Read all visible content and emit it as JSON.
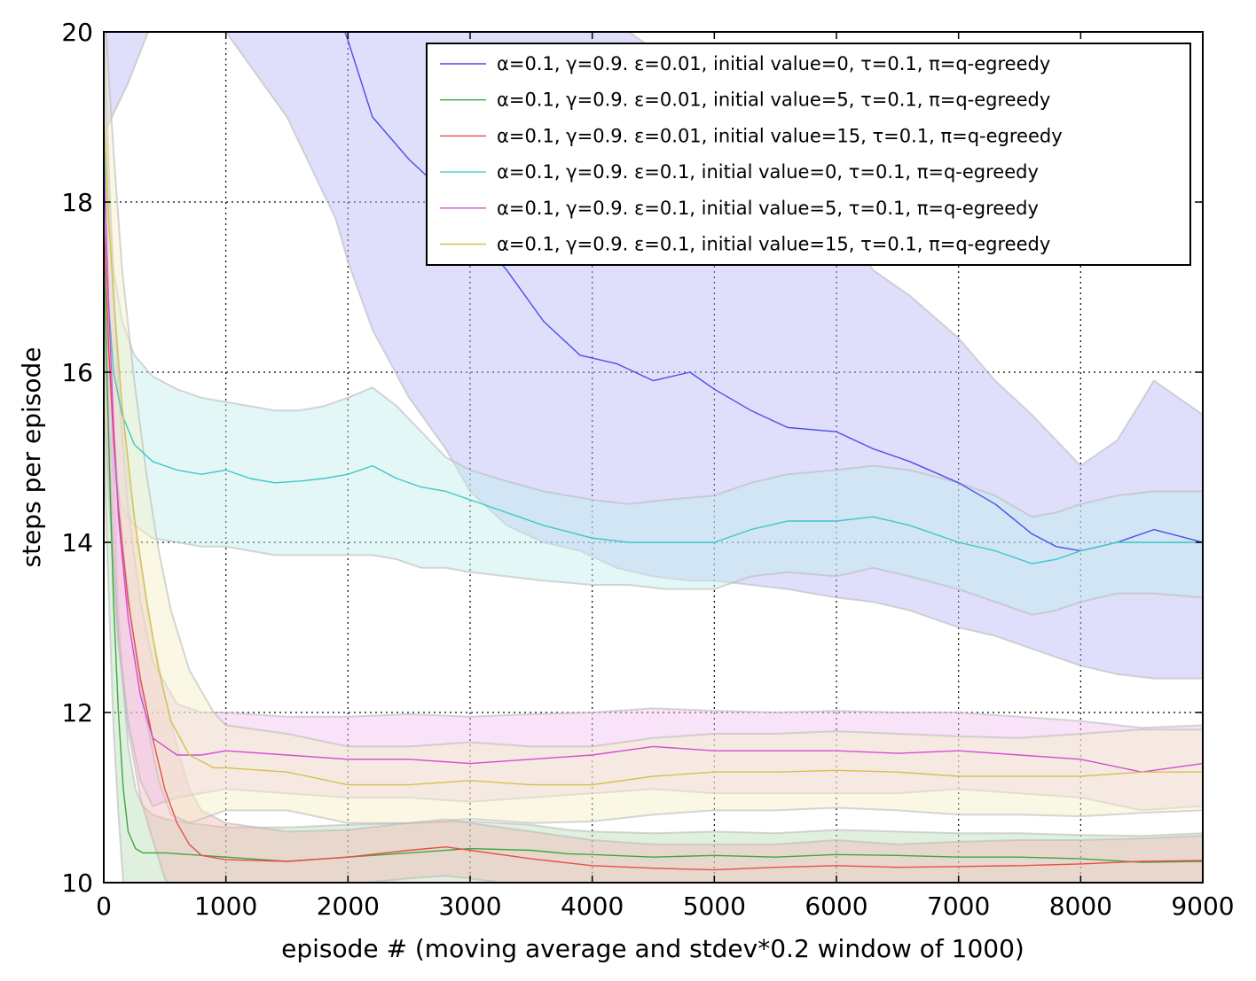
{
  "chart_data": {
    "type": "line",
    "title": "",
    "xlabel": "episode # (moving average and stdev*0.2 window of 1000)",
    "ylabel": "steps per episode",
    "xlim": [
      0,
      9000
    ],
    "ylim": [
      10,
      20
    ],
    "xticks": [
      0,
      1000,
      2000,
      3000,
      4000,
      5000,
      6000,
      7000,
      8000,
      9000
    ],
    "yticks": [
      10,
      12,
      14,
      16,
      18,
      20
    ],
    "xtick_labels": [
      "0",
      "1000",
      "2000",
      "3000",
      "4000",
      "5000",
      "6000",
      "7000",
      "8000",
      "9000"
    ],
    "ytick_labels": [
      "10",
      "12",
      "14",
      "16",
      "18",
      "20"
    ],
    "grid": true,
    "legend_position": "top-right",
    "series": [
      {
        "name": "α=0.1, γ=0.9. ε=0.01, initial value=0, τ=0.1, π=q-egreedy",
        "color": "#4d4de8",
        "fill": "#b7b7f7",
        "x": [
          0,
          200,
          500,
          1000,
          1500,
          1900,
          2000,
          2200,
          2500,
          2800,
          3000,
          3300,
          3600,
          3900,
          4200,
          4500,
          4800,
          5000,
          5300,
          5600,
          6000,
          6300,
          6600,
          7000,
          7300,
          7600,
          7800,
          8000,
          8300,
          8600,
          9000
        ],
        "mean": [
          20.9,
          21.4,
          21.8,
          21.5,
          21.0,
          20.3,
          19.9,
          19.0,
          18.5,
          18.1,
          17.7,
          17.2,
          16.6,
          16.2,
          16.1,
          15.9,
          16.0,
          15.8,
          15.55,
          15.35,
          15.3,
          15.1,
          14.95,
          14.7,
          14.45,
          14.1,
          13.95,
          13.9,
          14.0,
          14.15,
          14.0
        ],
        "upper": [
          23.0,
          23.0,
          23.0,
          23.0,
          22.5,
          22.0,
          21.7,
          21.4,
          21.2,
          21.0,
          20.8,
          20.6,
          20.4,
          20.3,
          20.1,
          19.8,
          19.5,
          19.3,
          18.8,
          18.3,
          17.8,
          17.2,
          16.9,
          16.4,
          15.9,
          15.5,
          15.2,
          14.9,
          15.2,
          15.9,
          15.5
        ],
        "lower": [
          18.8,
          19.4,
          20.5,
          20.0,
          19.0,
          17.8,
          17.3,
          16.5,
          15.7,
          15.1,
          14.6,
          14.2,
          14.0,
          13.9,
          13.7,
          13.6,
          13.55,
          13.55,
          13.5,
          13.45,
          13.35,
          13.3,
          13.2,
          13.0,
          12.9,
          12.75,
          12.65,
          12.55,
          12.45,
          12.4,
          12.4
        ]
      },
      {
        "name": "α=0.1, γ=0.9. ε=0.01, initial value=5, τ=0.1, π=q-egreedy",
        "color": "#3ea83e",
        "fill": "#b9ddb9",
        "x": [
          0,
          40,
          80,
          120,
          160,
          200,
          260,
          320,
          400,
          500,
          700,
          1000,
          1500,
          2000,
          2500,
          3000,
          3500,
          3800,
          4000,
          4500,
          5000,
          5500,
          6000,
          6500,
          7000,
          7500,
          8000,
          8500,
          9000
        ],
        "mean": [
          17.5,
          15.2,
          13.3,
          12.0,
          11.1,
          10.6,
          10.4,
          10.35,
          10.35,
          10.35,
          10.33,
          10.3,
          10.25,
          10.3,
          10.35,
          10.4,
          10.38,
          10.34,
          10.33,
          10.3,
          10.32,
          10.3,
          10.33,
          10.32,
          10.3,
          10.3,
          10.28,
          10.24,
          10.25
        ],
        "upper": [
          19.8,
          17.0,
          14.8,
          13.2,
          12.3,
          11.6,
          11.1,
          10.9,
          10.8,
          10.75,
          10.7,
          10.65,
          10.65,
          10.68,
          10.7,
          10.72,
          10.68,
          10.62,
          10.6,
          10.58,
          10.6,
          10.58,
          10.62,
          10.6,
          10.58,
          10.58,
          10.56,
          10.55,
          10.58
        ],
        "lower": [
          15.2,
          13.4,
          11.8,
          10.8,
          10.0,
          9.6,
          9.6,
          9.7,
          9.8,
          9.9,
          9.9,
          9.9,
          9.9,
          9.95,
          9.98,
          10.0,
          10.0,
          10.0,
          10.0,
          10.0,
          10.0,
          10.0,
          10.0,
          10.0,
          10.0,
          10.0,
          10.0,
          9.98,
          9.98
        ]
      },
      {
        "name": "α=0.1, γ=0.9. ε=0.01, initial value=15, τ=0.1, π=q-egreedy",
        "color": "#e84d4d",
        "fill": "#f4b9b9",
        "x": [
          0,
          40,
          80,
          120,
          200,
          300,
          400,
          500,
          600,
          700,
          800,
          1000,
          1500,
          2000,
          2500,
          2800,
          3000,
          3500,
          4000,
          4500,
          5000,
          5500,
          6000,
          6500,
          7000,
          7500,
          8000,
          8500,
          9000
        ],
        "mean": [
          17.8,
          16.3,
          15.2,
          14.4,
          13.3,
          12.4,
          11.7,
          11.1,
          10.7,
          10.45,
          10.32,
          10.27,
          10.25,
          10.3,
          10.38,
          10.42,
          10.38,
          10.28,
          10.2,
          10.17,
          10.15,
          10.18,
          10.2,
          10.18,
          10.19,
          10.2,
          10.22,
          10.25,
          10.26
        ],
        "upper": [
          20.0,
          18.0,
          16.8,
          16.0,
          14.8,
          13.8,
          12.9,
          12.2,
          11.6,
          11.1,
          10.85,
          10.7,
          10.6,
          10.62,
          10.7,
          10.75,
          10.7,
          10.6,
          10.5,
          10.45,
          10.45,
          10.45,
          10.5,
          10.45,
          10.48,
          10.5,
          10.5,
          10.52,
          10.55
        ],
        "lower": [
          15.6,
          14.6,
          13.6,
          12.8,
          11.8,
          11.0,
          10.5,
          10.05,
          9.8,
          9.8,
          9.8,
          9.85,
          9.9,
          9.98,
          10.05,
          10.08,
          10.05,
          9.95,
          9.9,
          9.88,
          9.85,
          9.9,
          9.9,
          9.9,
          9.9,
          9.9,
          9.92,
          9.95,
          9.97
        ]
      },
      {
        "name": "α=0.1, γ=0.9. ε=0.1, initial value=0, τ=0.1, π=q-egreedy",
        "color": "#3ec7c7",
        "fill": "#c2eeee",
        "x": [
          0,
          20,
          40,
          80,
          150,
          250,
          400,
          600,
          800,
          1000,
          1200,
          1400,
          1600,
          1800,
          2000,
          2200,
          2400,
          2600,
          2800,
          3000,
          3300,
          3600,
          4000,
          4300,
          4600,
          5000,
          5300,
          5600,
          6000,
          6300,
          6600,
          7000,
          7300,
          7600,
          7800,
          8000,
          8300,
          8600,
          9000
        ],
        "mean": [
          19.0,
          17.5,
          16.8,
          16.0,
          15.5,
          15.15,
          14.95,
          14.85,
          14.8,
          14.85,
          14.75,
          14.7,
          14.72,
          14.75,
          14.8,
          14.9,
          14.75,
          14.65,
          14.6,
          14.5,
          14.35,
          14.2,
          14.05,
          14.0,
          14.0,
          14.0,
          14.15,
          14.25,
          14.25,
          14.3,
          14.2,
          14.0,
          13.9,
          13.75,
          13.8,
          13.9,
          14.0,
          14.0,
          14.0
        ],
        "upper": [
          20.5,
          19.0,
          18.2,
          17.2,
          16.6,
          16.2,
          15.95,
          15.8,
          15.7,
          15.65,
          15.6,
          15.55,
          15.55,
          15.6,
          15.7,
          15.82,
          15.6,
          15.3,
          15.0,
          14.85,
          14.72,
          14.6,
          14.5,
          14.45,
          14.5,
          14.55,
          14.7,
          14.8,
          14.85,
          14.9,
          14.85,
          14.7,
          14.55,
          14.3,
          14.35,
          14.45,
          14.55,
          14.6,
          14.6
        ],
        "lower": [
          17.5,
          16.0,
          15.4,
          14.8,
          14.4,
          14.2,
          14.05,
          14.0,
          13.95,
          13.95,
          13.9,
          13.85,
          13.85,
          13.85,
          13.85,
          13.85,
          13.8,
          13.7,
          13.7,
          13.65,
          13.6,
          13.55,
          13.5,
          13.5,
          13.45,
          13.45,
          13.6,
          13.65,
          13.6,
          13.7,
          13.6,
          13.45,
          13.3,
          13.15,
          13.2,
          13.3,
          13.4,
          13.4,
          13.35
        ]
      },
      {
        "name": "α=0.1, γ=0.9. ε=0.1, initial value=5, τ=0.1, π=q-egreedy",
        "color": "#d44dd4",
        "fill": "#efc2ef",
        "x": [
          0,
          40,
          80,
          120,
          200,
          300,
          400,
          600,
          800,
          1000,
          1500,
          2000,
          2500,
          3000,
          3500,
          4000,
          4500,
          5000,
          5500,
          6000,
          6500,
          7000,
          7500,
          8000,
          8500,
          9000
        ],
        "mean": [
          18.5,
          16.8,
          15.4,
          14.3,
          13.1,
          12.2,
          11.7,
          11.5,
          11.5,
          11.55,
          11.5,
          11.45,
          11.45,
          11.4,
          11.45,
          11.5,
          11.6,
          11.55,
          11.55,
          11.55,
          11.52,
          11.55,
          11.5,
          11.45,
          11.3,
          11.4
        ],
        "upper": [
          20.0,
          18.5,
          17.0,
          15.8,
          14.4,
          13.3,
          12.6,
          12.1,
          12.0,
          12.0,
          11.95,
          11.95,
          11.98,
          11.95,
          11.98,
          12.0,
          12.05,
          12.02,
          12.0,
          12.02,
          12.0,
          12.0,
          11.95,
          11.9,
          11.82,
          11.85
        ],
        "lower": [
          17.0,
          15.2,
          13.9,
          12.9,
          11.9,
          11.2,
          10.9,
          11.0,
          11.05,
          11.1,
          11.05,
          11.0,
          11.0,
          10.95,
          11.0,
          11.05,
          11.1,
          11.05,
          11.05,
          11.05,
          11.05,
          11.1,
          11.05,
          11.0,
          10.85,
          10.9
        ]
      },
      {
        "name": "α=0.1, γ=0.9. ε=0.1, initial value=15, τ=0.1, π=q-egreedy",
        "color": "#d4c24d",
        "fill": "#f3efc6",
        "x": [
          0,
          40,
          80,
          150,
          250,
          350,
          450,
          550,
          700,
          900,
          1000,
          1500,
          2000,
          2500,
          3000,
          3500,
          4000,
          4500,
          5000,
          5500,
          6000,
          6500,
          7000,
          7500,
          8000,
          8500,
          9000
        ],
        "mean": [
          19.0,
          17.8,
          16.9,
          15.6,
          14.3,
          13.3,
          12.5,
          11.9,
          11.5,
          11.35,
          11.35,
          11.3,
          11.15,
          11.15,
          11.2,
          11.15,
          11.15,
          11.25,
          11.3,
          11.3,
          11.32,
          11.3,
          11.25,
          11.25,
          11.25,
          11.3,
          11.3
        ],
        "upper": [
          20.5,
          19.5,
          18.6,
          17.2,
          15.9,
          14.8,
          13.9,
          13.2,
          12.5,
          12.0,
          11.85,
          11.75,
          11.6,
          11.6,
          11.65,
          11.6,
          11.6,
          11.7,
          11.75,
          11.75,
          11.78,
          11.75,
          11.72,
          11.7,
          11.75,
          11.8,
          11.8
        ],
        "lower": [
          17.5,
          16.2,
          15.3,
          14.0,
          12.8,
          11.9,
          11.2,
          10.8,
          10.7,
          10.8,
          10.85,
          10.85,
          10.7,
          10.7,
          10.75,
          10.7,
          10.72,
          10.8,
          10.85,
          10.85,
          10.88,
          10.85,
          10.8,
          10.8,
          10.78,
          10.82,
          10.85
        ]
      }
    ]
  }
}
